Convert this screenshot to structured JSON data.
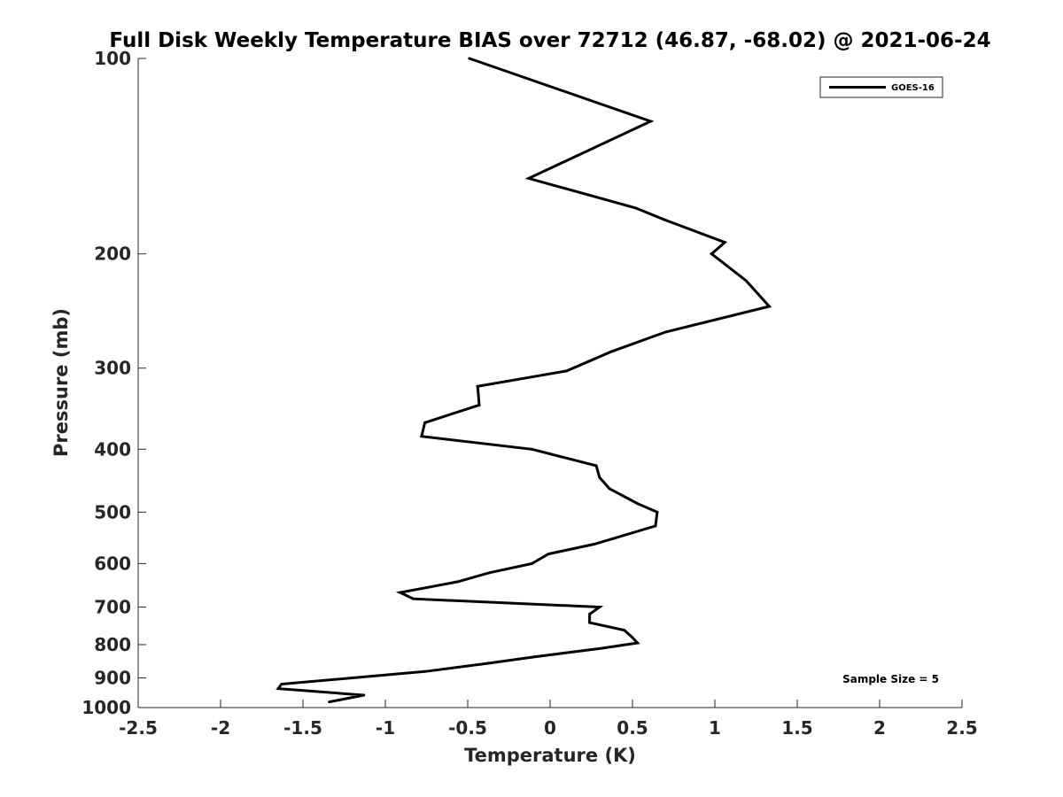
{
  "chart_data": {
    "type": "line",
    "title": "Full Disk Weekly Temperature BIAS over 72712 (46.87, -68.02) @ 2021-06-24",
    "xlabel": "Temperature (K)",
    "ylabel": "Pressure (mb)",
    "xlim": [
      -2.5,
      2.5
    ],
    "ylim": [
      1000,
      100
    ],
    "y_scale": "log",
    "y_reversed": true,
    "x_ticks": [
      "-2.5",
      "-2",
      "-1.5",
      "-1",
      "-0.5",
      "0",
      "0.5",
      "1",
      "1.5",
      "2",
      "2.5"
    ],
    "y_ticks": [
      "100",
      "200",
      "300",
      "400",
      "500",
      "600",
      "700",
      "800",
      "900",
      "1000"
    ],
    "grid": false,
    "legend_position": "top-right",
    "annotation": "Sample Size = 5",
    "series": [
      {
        "name": "GOES-16",
        "color": "#000000",
        "points": [
          {
            "x": -0.49,
            "y": 100
          },
          {
            "x": 0.61,
            "y": 125
          },
          {
            "x": -0.13,
            "y": 153
          },
          {
            "x": 0.52,
            "y": 170
          },
          {
            "x": 0.69,
            "y": 177
          },
          {
            "x": 1.06,
            "y": 192
          },
          {
            "x": 0.98,
            "y": 200
          },
          {
            "x": 1.19,
            "y": 220
          },
          {
            "x": 1.33,
            "y": 241
          },
          {
            "x": 0.7,
            "y": 264
          },
          {
            "x": 0.37,
            "y": 283
          },
          {
            "x": 0.1,
            "y": 303
          },
          {
            "x": -0.44,
            "y": 320
          },
          {
            "x": -0.43,
            "y": 342
          },
          {
            "x": -0.76,
            "y": 364
          },
          {
            "x": -0.78,
            "y": 382
          },
          {
            "x": -0.11,
            "y": 400
          },
          {
            "x": 0.28,
            "y": 424
          },
          {
            "x": 0.3,
            "y": 442
          },
          {
            "x": 0.36,
            "y": 460
          },
          {
            "x": 0.53,
            "y": 485
          },
          {
            "x": 0.65,
            "y": 500
          },
          {
            "x": 0.64,
            "y": 525
          },
          {
            "x": 0.27,
            "y": 560
          },
          {
            "x": -0.01,
            "y": 580
          },
          {
            "x": -0.11,
            "y": 600
          },
          {
            "x": -0.37,
            "y": 620
          },
          {
            "x": -0.56,
            "y": 640
          },
          {
            "x": -0.91,
            "y": 665
          },
          {
            "x": -0.83,
            "y": 680
          },
          {
            "x": 0.3,
            "y": 700
          },
          {
            "x": 0.24,
            "y": 718
          },
          {
            "x": 0.24,
            "y": 740
          },
          {
            "x": 0.45,
            "y": 760
          },
          {
            "x": 0.5,
            "y": 780
          },
          {
            "x": 0.53,
            "y": 795
          },
          {
            "x": 0.32,
            "y": 810
          },
          {
            "x": -0.09,
            "y": 835
          },
          {
            "x": -0.38,
            "y": 855
          },
          {
            "x": -0.76,
            "y": 880
          },
          {
            "x": -1.63,
            "y": 920
          },
          {
            "x": -1.65,
            "y": 935
          },
          {
            "x": -1.13,
            "y": 957
          },
          {
            "x": -1.34,
            "y": 980
          }
        ]
      }
    ]
  }
}
